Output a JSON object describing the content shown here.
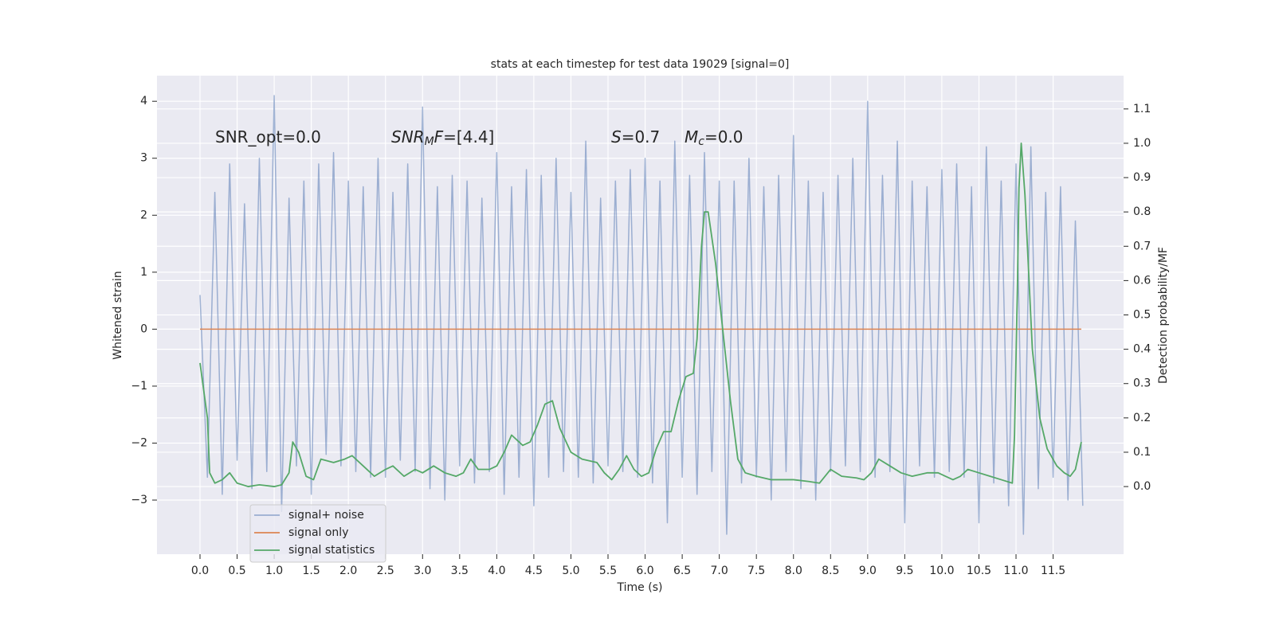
{
  "chart_data": {
    "type": "line",
    "title": "stats at each timestep for test data 19029 [signal=0]",
    "x_label": "Time (s)",
    "y_label": "Whitened strain",
    "y2_label": "Detection probability/MF",
    "xlim": [
      -0.58,
      12.45
    ],
    "xticks": [
      {
        "value": 0,
        "label": "0.0"
      },
      0.5,
      {
        "value": 1,
        "label": "1.0"
      },
      1.5,
      {
        "value": 2,
        "label": "2.0"
      },
      2.5,
      {
        "value": 3,
        "label": "3.0"
      },
      3.5,
      {
        "value": 4,
        "label": "4.0"
      },
      4.5,
      {
        "value": 5,
        "label": "5.0"
      },
      5.5,
      {
        "value": 6,
        "label": "6.0"
      },
      6.5,
      {
        "value": 7,
        "label": "7.0"
      },
      7.5,
      {
        "value": 8,
        "label": "8.0"
      },
      8.5,
      {
        "value": 9,
        "label": "9.0"
      },
      9.5,
      {
        "value": 10,
        "label": "10.0"
      },
      10.5,
      {
        "value": 11,
        "label": "11.0"
      },
      11.5
    ],
    "ylim": [
      -3.95,
      4.45
    ],
    "yticks": [
      {
        "value": -3,
        "label": "−3"
      },
      {
        "value": -2,
        "label": "−2"
      },
      {
        "value": -1,
        "label": "−1"
      },
      0,
      1,
      2,
      3,
      4
    ],
    "y2lim": [
      -0.197,
      1.197
    ],
    "y2ticks": [
      {
        "value": 0,
        "label": "0.0"
      },
      0.1,
      0.2,
      0.3,
      0.4,
      0.5,
      0.6,
      0.7,
      0.8,
      0.9,
      {
        "value": 1,
        "label": "1.0"
      },
      1.1
    ],
    "grid": true,
    "legend": "lower left",
    "annotations": [
      [
        {
          "text": "SNR_opt=0.0",
          "italic": false,
          "sub": false
        }
      ],
      [
        {
          "text": "SNR",
          "italic": true,
          "sub": false
        },
        {
          "text": "M",
          "italic": true,
          "sub": true
        },
        {
          "text": "F",
          "italic": true,
          "sub": false
        },
        {
          "text": "=[4.4]",
          "italic": false,
          "sub": false
        }
      ],
      [
        {
          "text": "S",
          "italic": true,
          "sub": false
        },
        {
          "text": "=0.7",
          "italic": false,
          "sub": false
        }
      ],
      [
        {
          "text": "M",
          "italic": true,
          "sub": false
        },
        {
          "text": "c",
          "italic": true,
          "sub": true
        },
        {
          "text": "=0.0",
          "italic": false,
          "sub": false
        }
      ]
    ],
    "series": [
      {
        "name": "signal+ noise",
        "color": "#4c72b0",
        "opacity": 0.5,
        "x": [
          0,
          0.1,
          0.2,
          0.3,
          0.4,
          0.5,
          0.6,
          0.7,
          0.8,
          0.9,
          1.0,
          1.1,
          1.2,
          1.3,
          1.4,
          1.5,
          1.6,
          1.7,
          1.8,
          1.9,
          2.0,
          2.1,
          2.2,
          2.3,
          2.4,
          2.5,
          2.6,
          2.7,
          2.8,
          2.9,
          3.0,
          3.1,
          3.2,
          3.3,
          3.4,
          3.5,
          3.6,
          3.7,
          3.8,
          3.9,
          4.0,
          4.1,
          4.2,
          4.3,
          4.4,
          4.5,
          4.6,
          4.7,
          4.8,
          4.9,
          5.0,
          5.1,
          5.2,
          5.3,
          5.4,
          5.5,
          5.6,
          5.7,
          5.8,
          5.9,
          6.0,
          6.1,
          6.2,
          6.3,
          6.4,
          6.5,
          6.6,
          6.7,
          6.8,
          6.9,
          7.0,
          7.1,
          7.2,
          7.3,
          7.4,
          7.5,
          7.6,
          7.7,
          7.8,
          7.9,
          8.0,
          8.1,
          8.2,
          8.3,
          8.4,
          8.5,
          8.6,
          8.7,
          8.8,
          8.9,
          9.0,
          9.1,
          9.2,
          9.3,
          9.4,
          9.5,
          9.6,
          9.7,
          9.8,
          9.9,
          10.0,
          10.1,
          10.2,
          10.3,
          10.4,
          10.5,
          10.6,
          10.7,
          10.8,
          10.9,
          11.0,
          11.1,
          11.2,
          11.3,
          11.4,
          11.5,
          11.6,
          11.7,
          11.8,
          11.9
        ],
        "values": [
          0.6,
          -2.6,
          2.4,
          -2.9,
          2.9,
          -2.3,
          2.2,
          -2.8,
          3.0,
          -2.5,
          4.1,
          -3.2,
          2.3,
          -2.4,
          2.6,
          -2.9,
          2.9,
          -2.2,
          3.1,
          -2.4,
          2.6,
          -2.5,
          2.5,
          -2.6,
          3.0,
          -2.6,
          2.4,
          -2.3,
          2.9,
          -2.5,
          3.9,
          -2.8,
          2.5,
          -3.0,
          2.7,
          -2.4,
          2.6,
          -2.7,
          2.3,
          -2.5,
          3.1,
          -2.9,
          2.5,
          -2.6,
          2.8,
          -3.1,
          2.7,
          -2.6,
          3.0,
          -2.5,
          2.4,
          -2.6,
          3.3,
          -2.7,
          2.3,
          -2.4,
          2.6,
          -2.5,
          2.8,
          -2.6,
          3.0,
          -2.7,
          2.6,
          -3.4,
          3.3,
          -2.6,
          2.7,
          -2.9,
          3.1,
          -2.5,
          2.6,
          -3.6,
          2.6,
          -2.7,
          3.0,
          -2.6,
          2.5,
          -3.0,
          2.7,
          -2.5,
          3.4,
          -2.8,
          2.6,
          -3.0,
          2.4,
          -2.5,
          2.7,
          -2.4,
          3.0,
          -2.5,
          4.0,
          -2.6,
          2.7,
          -2.5,
          3.3,
          -3.4,
          2.6,
          -2.4,
          2.5,
          -2.6,
          2.8,
          -2.5,
          2.9,
          -2.6,
          2.5,
          -3.4,
          3.2,
          -2.7,
          2.6,
          -3.1,
          2.9,
          -3.6,
          3.2,
          -2.8,
          2.4,
          -2.6,
          2.5,
          -3.0,
          1.9,
          -3.1
        ]
      },
      {
        "name": "signal only",
        "color": "#dd8452",
        "x": [
          0,
          11.88
        ],
        "values": [
          0,
          0
        ]
      },
      {
        "name": "signal statistics",
        "color": "#55a868",
        "axis": "y2",
        "x": [
          0,
          0.1,
          0.13,
          0.2,
          0.3,
          0.4,
          0.5,
          0.65,
          0.8,
          1.0,
          1.1,
          1.2,
          1.25,
          1.33,
          1.43,
          1.53,
          1.63,
          1.8,
          1.95,
          2.05,
          2.2,
          2.35,
          2.5,
          2.6,
          2.75,
          2.9,
          3.0,
          3.15,
          3.3,
          3.45,
          3.55,
          3.65,
          3.75,
          3.9,
          4.0,
          4.1,
          4.2,
          4.35,
          4.45,
          4.55,
          4.65,
          4.75,
          4.85,
          5.0,
          5.15,
          5.35,
          5.45,
          5.55,
          5.65,
          5.75,
          5.85,
          5.95,
          6.05,
          6.15,
          6.25,
          6.35,
          6.45,
          6.55,
          6.65,
          6.7,
          6.76,
          6.8,
          6.85,
          6.95,
          7.05,
          7.15,
          7.25,
          7.35,
          7.5,
          7.7,
          8.0,
          8.2,
          8.35,
          8.5,
          8.65,
          8.85,
          8.95,
          9.05,
          9.15,
          9.3,
          9.45,
          9.6,
          9.8,
          9.95,
          10.05,
          10.15,
          10.25,
          10.35,
          10.5,
          10.65,
          10.8,
          10.95,
          10.98,
          11.02,
          11.04,
          11.07,
          11.12,
          11.22,
          11.32,
          11.42,
          11.55,
          11.65,
          11.73,
          11.8,
          11.88
        ],
        "values": [
          0.36,
          0.2,
          0.04,
          0.01,
          0.02,
          0.04,
          0.01,
          0,
          0.005,
          0,
          0.005,
          0.04,
          0.13,
          0.1,
          0.03,
          0.02,
          0.08,
          0.07,
          0.08,
          0.09,
          0.06,
          0.03,
          0.05,
          0.06,
          0.03,
          0.05,
          0.04,
          0.06,
          0.04,
          0.03,
          0.04,
          0.08,
          0.05,
          0.05,
          0.06,
          0.1,
          0.15,
          0.12,
          0.13,
          0.18,
          0.24,
          0.25,
          0.17,
          0.1,
          0.08,
          0.07,
          0.04,
          0.02,
          0.05,
          0.09,
          0.05,
          0.03,
          0.04,
          0.11,
          0.16,
          0.16,
          0.25,
          0.32,
          0.33,
          0.43,
          0.7,
          0.8,
          0.8,
          0.65,
          0.45,
          0.25,
          0.08,
          0.04,
          0.03,
          0.02,
          0.02,
          0.015,
          0.01,
          0.05,
          0.03,
          0.025,
          0.02,
          0.04,
          0.08,
          0.06,
          0.04,
          0.03,
          0.04,
          0.04,
          0.03,
          0.02,
          0.03,
          0.05,
          0.04,
          0.03,
          0.02,
          0.01,
          0.15,
          0.6,
          0.87,
          1.0,
          0.85,
          0.4,
          0.2,
          0.11,
          0.06,
          0.04,
          0.03,
          0.05,
          0.13
        ]
      }
    ]
  }
}
